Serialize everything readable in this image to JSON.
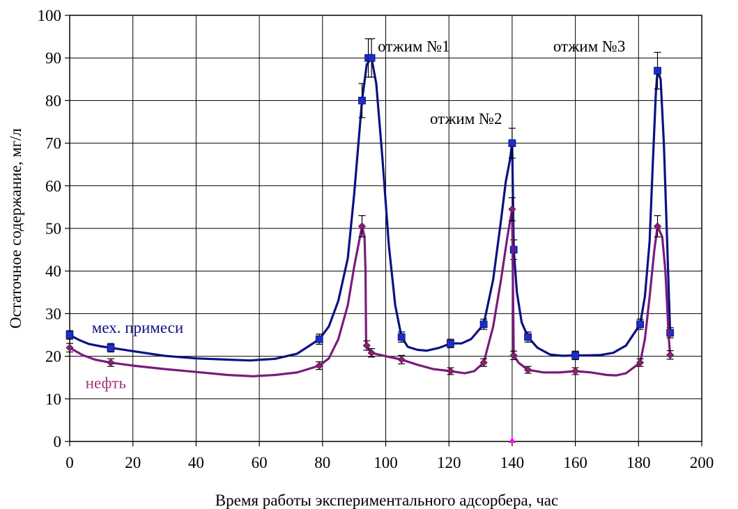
{
  "chart_data": {
    "type": "line",
    "xlabel": "Время работы экспериментального адсорбера, час",
    "ylabel": "Остаточное содержание, мг/л",
    "xlim": [
      0,
      200
    ],
    "ylim": [
      0,
      100
    ],
    "xticks": [
      0,
      20,
      40,
      60,
      80,
      100,
      120,
      140,
      160,
      180,
      200
    ],
    "yticks": [
      0,
      10,
      20,
      30,
      40,
      50,
      60,
      70,
      80,
      90,
      100
    ],
    "grid": true,
    "series": [
      {
        "name": "мех. примеси",
        "color": "#0d1180",
        "marker": "square",
        "marker_color": "#1a2fc8",
        "points": [
          {
            "x": 0,
            "y": 25,
            "err": 1
          },
          {
            "x": 13,
            "y": 22,
            "err": 1
          },
          {
            "x": 79,
            "y": 24,
            "err": 1.2
          },
          {
            "x": 92.5,
            "y": 80,
            "err": 4
          },
          {
            "x": 94.5,
            "y": 90,
            "err": 4.5
          },
          {
            "x": 95.5,
            "y": 90,
            "err": 4.5
          },
          {
            "x": 105,
            "y": 24.5,
            "err": 1.2
          },
          {
            "x": 120.5,
            "y": 23,
            "err": 1
          },
          {
            "x": 131,
            "y": 27.5,
            "err": 1.2
          },
          {
            "x": 140,
            "y": 70,
            "err": 3.5
          },
          {
            "x": 140.5,
            "y": 45,
            "err": 2.3
          },
          {
            "x": 145,
            "y": 24.5,
            "err": 1.2
          },
          {
            "x": 160,
            "y": 20.2,
            "err": 1
          },
          {
            "x": 180.5,
            "y": 27.5,
            "err": 1.2
          },
          {
            "x": 186,
            "y": 87,
            "err": 4.3
          },
          {
            "x": 190,
            "y": 25.5,
            "err": 1.2
          }
        ],
        "curve": [
          [
            0,
            25
          ],
          [
            3,
            23.8
          ],
          [
            6,
            22.9
          ],
          [
            10,
            22.3
          ],
          [
            13,
            22
          ],
          [
            20,
            21.2
          ],
          [
            30,
            20.1
          ],
          [
            40,
            19.5
          ],
          [
            50,
            19.2
          ],
          [
            57,
            19
          ],
          [
            65,
            19.4
          ],
          [
            72,
            20.6
          ],
          [
            79,
            24
          ],
          [
            82,
            27
          ],
          [
            85,
            33
          ],
          [
            88,
            43
          ],
          [
            90,
            58
          ],
          [
            92.5,
            80
          ],
          [
            94,
            88.5
          ],
          [
            95.5,
            90
          ],
          [
            97,
            84
          ],
          [
            99,
            66
          ],
          [
            101,
            46
          ],
          [
            103,
            32
          ],
          [
            105,
            24.5
          ],
          [
            107,
            22.2
          ],
          [
            110,
            21.5
          ],
          [
            113,
            21.3
          ],
          [
            117,
            22
          ],
          [
            120.5,
            23
          ],
          [
            124,
            23
          ],
          [
            127,
            24
          ],
          [
            131,
            27.5
          ],
          [
            134,
            38
          ],
          [
            136.5,
            52
          ],
          [
            138,
            61
          ],
          [
            139.3,
            66
          ],
          [
            140,
            70
          ],
          [
            140.5,
            45
          ],
          [
            141.5,
            35
          ],
          [
            143,
            28
          ],
          [
            145,
            24.5
          ],
          [
            148,
            22
          ],
          [
            152,
            20.4
          ],
          [
            156,
            20.1
          ],
          [
            160,
            20.2
          ],
          [
            164,
            20.2
          ],
          [
            168,
            20.3
          ],
          [
            172,
            20.8
          ],
          [
            176,
            22.5
          ],
          [
            180.5,
            27.5
          ],
          [
            182,
            34
          ],
          [
            183.5,
            47
          ],
          [
            184.5,
            65
          ],
          [
            185.5,
            82
          ],
          [
            186,
            87
          ],
          [
            187,
            85
          ],
          [
            188,
            70
          ],
          [
            189,
            48
          ],
          [
            190,
            25.5
          ]
        ]
      },
      {
        "name": "нефть",
        "color": "#7a1b7c",
        "marker": "diamond",
        "marker_color": "#8e1f6f",
        "points": [
          {
            "x": 0,
            "y": 22,
            "err": 1
          },
          {
            "x": 13,
            "y": 18.5,
            "err": 0.9
          },
          {
            "x": 79,
            "y": 17.8,
            "err": 0.9
          },
          {
            "x": 92.5,
            "y": 50.5,
            "err": 2.5
          },
          {
            "x": 94,
            "y": 22.5,
            "err": 1.1
          },
          {
            "x": 95.5,
            "y": 20.8,
            "err": 1
          },
          {
            "x": 105,
            "y": 19.2,
            "err": 1
          },
          {
            "x": 120.5,
            "y": 16.5,
            "err": 0.8
          },
          {
            "x": 131,
            "y": 18.5,
            "err": 0.9
          },
          {
            "x": 140,
            "y": 54.5,
            "err": 2.7
          },
          {
            "x": 140.5,
            "y": 20.2,
            "err": 1
          },
          {
            "x": 145,
            "y": 16.8,
            "err": 0.8
          },
          {
            "x": 160,
            "y": 16.5,
            "err": 0.8
          },
          {
            "x": 180.5,
            "y": 18.5,
            "err": 0.9
          },
          {
            "x": 186,
            "y": 50.5,
            "err": 2.5
          },
          {
            "x": 190,
            "y": 20.3,
            "err": 1
          }
        ],
        "curve": [
          [
            0,
            22
          ],
          [
            4,
            20.3
          ],
          [
            8,
            19.2
          ],
          [
            13,
            18.5
          ],
          [
            20,
            17.8
          ],
          [
            30,
            17
          ],
          [
            40,
            16.3
          ],
          [
            50,
            15.6
          ],
          [
            58,
            15.3
          ],
          [
            65,
            15.6
          ],
          [
            72,
            16.2
          ],
          [
            79,
            17.8
          ],
          [
            82,
            19.5
          ],
          [
            85,
            24
          ],
          [
            88,
            32
          ],
          [
            90,
            41
          ],
          [
            92.5,
            50.5
          ],
          [
            93.3,
            48
          ],
          [
            93.6,
            40
          ],
          [
            93.8,
            22.5
          ],
          [
            95.5,
            20.8
          ],
          [
            100,
            20
          ],
          [
            105,
            19.2
          ],
          [
            110,
            18
          ],
          [
            115,
            17
          ],
          [
            120.5,
            16.5
          ],
          [
            125,
            16
          ],
          [
            128,
            16.5
          ],
          [
            131,
            18.5
          ],
          [
            134,
            27
          ],
          [
            136.5,
            38
          ],
          [
            138.5,
            48
          ],
          [
            140,
            54.5
          ],
          [
            140.5,
            20.2
          ],
          [
            142,
            18.5
          ],
          [
            145,
            16.8
          ],
          [
            150,
            16.2
          ],
          [
            155,
            16.2
          ],
          [
            160,
            16.5
          ],
          [
            165,
            16.2
          ],
          [
            170,
            15.6
          ],
          [
            173,
            15.5
          ],
          [
            176,
            16
          ],
          [
            180.5,
            18.5
          ],
          [
            182,
            24
          ],
          [
            183.5,
            34
          ],
          [
            185,
            45
          ],
          [
            186,
            50.5
          ],
          [
            187.5,
            48
          ],
          [
            188.5,
            40
          ],
          [
            189.5,
            25
          ],
          [
            190,
            20.3
          ]
        ]
      }
    ],
    "extra_marker": {
      "x": 140,
      "y": 0,
      "color": "#ff00ff"
    },
    "series_labels": [
      {
        "text": "мех. примеси",
        "x": 7,
        "y": 25.5,
        "color": "#0d1180"
      },
      {
        "text": "нефть",
        "x": 5,
        "y": 12.5,
        "color": "#a03a7c"
      }
    ],
    "annotations": [
      {
        "text": "отжим №1",
        "x": 97.5,
        "y": 91.5
      },
      {
        "text": "отжим №2",
        "x": 114,
        "y": 74.5
      },
      {
        "text": "отжим №3",
        "x": 153,
        "y": 91.5
      }
    ]
  }
}
